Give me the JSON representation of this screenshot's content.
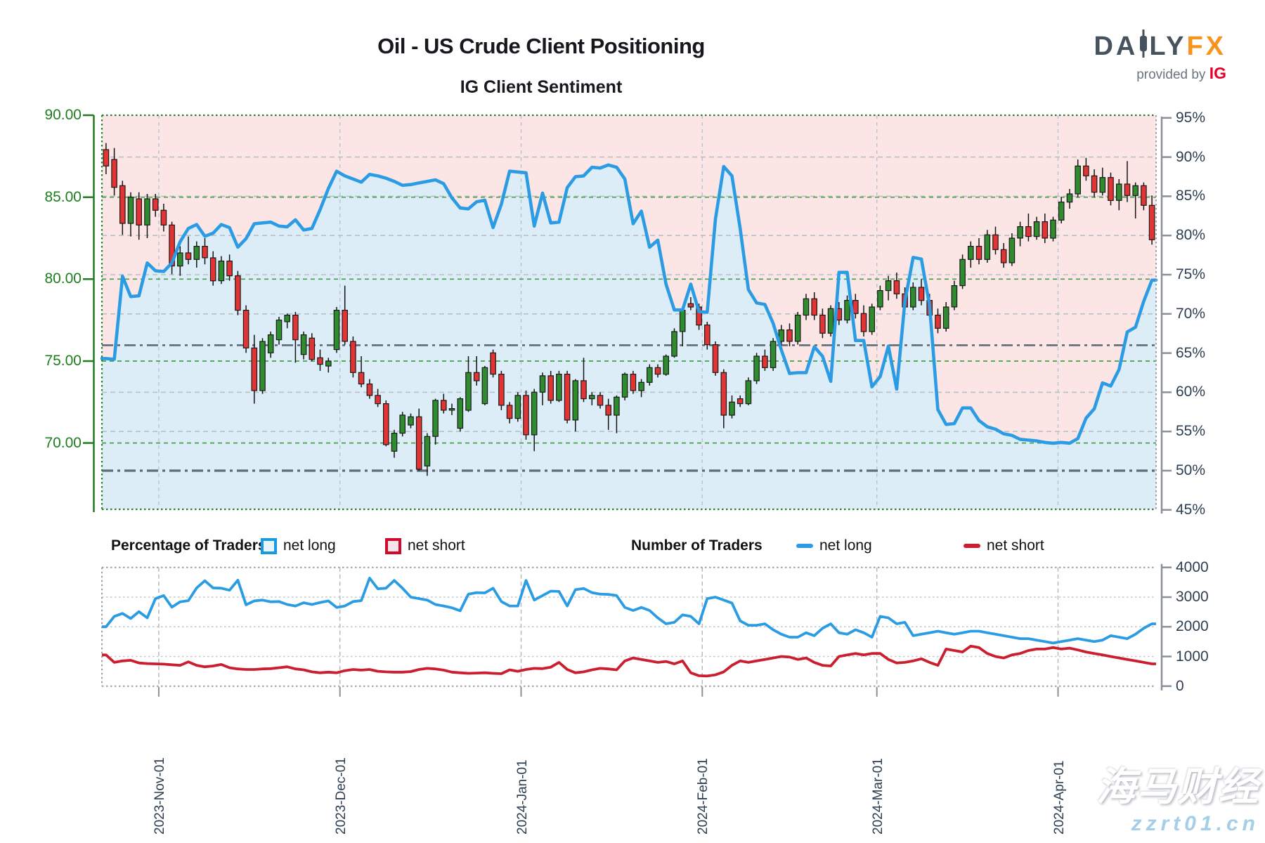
{
  "header": {
    "title": "Oil - US Crude Client Positioning",
    "chart_title": "IG Client Sentiment",
    "logo": {
      "part1": "DA",
      "part2": "LY",
      "part3": "FX",
      "tagline": "provided by",
      "brand": "IG"
    }
  },
  "legend": {
    "group1_title": "Percentage of Traders",
    "group1_long": "net long",
    "group1_short": "net short",
    "group2_title": "Number of Traders",
    "group2_long": "net long",
    "group2_short": "net short"
  },
  "watermark": {
    "line1": "海马财经",
    "line2": "zzrt01.cn"
  },
  "colors": {
    "sentiment_line": "#2b9ce3",
    "net_long_fill": "#dcedf8",
    "net_short_fill": "#fbe5e5",
    "candle_up": "#2e8b2e",
    "candle_down": "#e23434",
    "candle_outline": "#1b1b1b",
    "traders_long": "#2b9ce3",
    "traders_short": "#cb1f30",
    "price_axis": "#1e7d1e",
    "pct_axis_text": "#2c3e50",
    "grid_gray": "#b9bfc4",
    "grid_green": "#43a047",
    "grid_month": "#b8c6d1",
    "threshold": "#5f6b76",
    "spine": "#8a9097"
  },
  "chart_data": {
    "type": "candlestick+line",
    "title": "IG Client Sentiment",
    "x_axis": {
      "tick_labels": [
        "2023-Nov-01",
        "2023-Dec-01",
        "2024-Jan-01",
        "2024-Feb-01",
        "2024-Mar-01",
        "2024-Apr-01"
      ],
      "tick_day_index": [
        6.4,
        28.4,
        50.4,
        72.4,
        93.6,
        115.6
      ],
      "total_days": 128
    },
    "price_axis": {
      "side": "left",
      "tick_values": [
        90,
        85,
        80,
        75,
        70
      ],
      "tick_labels": [
        "90.00",
        "85.00",
        "80.00",
        "75.00",
        "70.00"
      ],
      "range": [
        65.9,
        90.0
      ]
    },
    "sentiment_axis": {
      "side": "right",
      "tick_labels": [
        "95%",
        "90%",
        "85%",
        "80%",
        "75%",
        "70%",
        "65%",
        "60%",
        "55%",
        "50%",
        "45%"
      ],
      "tick_values": [
        95,
        90,
        85,
        80,
        75,
        70,
        65,
        60,
        55,
        50,
        45
      ],
      "range": [
        45,
        95.4
      ]
    },
    "threshold_lines_pct": [
      66,
      50
    ],
    "gray_grid_pct": [
      90,
      85,
      80,
      75,
      70,
      60,
      55
    ],
    "green_grid_price": [
      85,
      80,
      75,
      70
    ],
    "net_long_pct": [
      64.3,
      64.2,
      74.8,
      72.2,
      72.3,
      76.5,
      75.5,
      75.4,
      76.5,
      79.2,
      80.9,
      81.4,
      79.9,
      80.3,
      81.4,
      81.0,
      78.5,
      79.6,
      81.5,
      81.6,
      81.7,
      81.2,
      81.1,
      82.0,
      80.7,
      80.9,
      83.3,
      86.0,
      88.2,
      87.6,
      87.2,
      86.8,
      87.8,
      87.6,
      87.3,
      86.9,
      86.4,
      86.5,
      86.7,
      86.9,
      87.1,
      86.6,
      84.8,
      83.5,
      83.4,
      84.3,
      84.5,
      81.0,
      84.0,
      88.2,
      88.1,
      88.0,
      81.2,
      85.4,
      81.6,
      81.7,
      86.1,
      87.5,
      87.6,
      88.7,
      88.6,
      89.0,
      88.7,
      87.2,
      81.5,
      83.1,
      78.5,
      79.4,
      73.8,
      70.5,
      70.5,
      73.8,
      70.3,
      70.2,
      82.1,
      88.8,
      87.6,
      80.9,
      73.1,
      71.4,
      71.2,
      68.8,
      65.4,
      62.4,
      62.5,
      62.5,
      65.8,
      64.6,
      61.4,
      75.3,
      75.3,
      66.6,
      66.6,
      60.7,
      62.0,
      65.9,
      60.4,
      71.6,
      77.2,
      77.0,
      71.1,
      57.8,
      55.9,
      56.0,
      58.0,
      58.0,
      56.4,
      55.6,
      55.3,
      54.7,
      54.5,
      54.0,
      53.9,
      53.8,
      53.6,
      53.5,
      53.6,
      53.5,
      54.1,
      56.7,
      57.9,
      61.2,
      60.8,
      62.9,
      67.7,
      68.3,
      71.6,
      74.3
    ],
    "candles_ohlc": [
      [
        87.9,
        88.3,
        86.4,
        86.9
      ],
      [
        87.3,
        88.0,
        85.1,
        85.6
      ],
      [
        85.7,
        86.0,
        82.7,
        83.4
      ],
      [
        83.4,
        85.3,
        82.6,
        85.0
      ],
      [
        84.9,
        85.3,
        82.4,
        83.3
      ],
      [
        83.3,
        85.2,
        82.5,
        84.9
      ],
      [
        84.9,
        85.2,
        83.8,
        84.2
      ],
      [
        84.2,
        84.6,
        82.9,
        83.3
      ],
      [
        83.3,
        83.5,
        80.3,
        80.8
      ],
      [
        80.8,
        82.0,
        80.2,
        81.6
      ],
      [
        81.6,
        82.6,
        80.9,
        81.2
      ],
      [
        81.2,
        82.3,
        80.7,
        82.0
      ],
      [
        82.0,
        82.5,
        80.9,
        81.3
      ],
      [
        81.3,
        81.7,
        79.6,
        79.9
      ],
      [
        79.9,
        81.4,
        79.7,
        81.1
      ],
      [
        81.1,
        81.5,
        79.9,
        80.2
      ],
      [
        80.2,
        80.5,
        77.8,
        78.1
      ],
      [
        78.1,
        78.4,
        75.5,
        75.8
      ],
      [
        75.8,
        76.6,
        72.4,
        73.2
      ],
      [
        73.2,
        76.4,
        73.0,
        76.2
      ],
      [
        75.5,
        76.8,
        75.2,
        76.6
      ],
      [
        76.3,
        77.7,
        76.0,
        77.5
      ],
      [
        77.4,
        77.9,
        77.0,
        77.8
      ],
      [
        77.8,
        78.0,
        74.9,
        76.3
      ],
      [
        75.4,
        76.8,
        75.1,
        76.6
      ],
      [
        76.4,
        76.7,
        75.0,
        75.1
      ],
      [
        75.2,
        75.7,
        74.4,
        74.8
      ],
      [
        74.7,
        75.2,
        74.3,
        75.0
      ],
      [
        75.7,
        78.3,
        75.5,
        78.1
      ],
      [
        78.1,
        79.6,
        76.0,
        76.2
      ],
      [
        76.2,
        76.5,
        74.0,
        74.3
      ],
      [
        74.3,
        75.3,
        73.4,
        73.6
      ],
      [
        73.6,
        73.9,
        72.7,
        72.9
      ],
      [
        72.9,
        73.3,
        72.2,
        72.4
      ],
      [
        72.4,
        72.6,
        69.8,
        69.9
      ],
      [
        69.5,
        70.8,
        69.1,
        70.6
      ],
      [
        70.6,
        71.9,
        70.4,
        71.7
      ],
      [
        71.1,
        71.8,
        70.9,
        71.6
      ],
      [
        71.6,
        72.1,
        68.3,
        68.4
      ],
      [
        68.6,
        70.6,
        68.0,
        70.4
      ],
      [
        70.4,
        72.7,
        69.9,
        72.6
      ],
      [
        72.6,
        73.0,
        71.8,
        72.0
      ],
      [
        72.0,
        72.4,
        71.7,
        72.1
      ],
      [
        70.9,
        72.8,
        70.7,
        72.7
      ],
      [
        72.0,
        75.3,
        71.9,
        74.3
      ],
      [
        74.3,
        75.3,
        73.5,
        73.8
      ],
      [
        72.4,
        74.7,
        72.3,
        74.6
      ],
      [
        75.5,
        75.7,
        74.0,
        74.2
      ],
      [
        74.2,
        74.4,
        72.0,
        72.3
      ],
      [
        72.3,
        72.5,
        71.2,
        71.5
      ],
      [
        71.5,
        73.1,
        71.3,
        72.9
      ],
      [
        72.9,
        73.2,
        70.2,
        70.5
      ],
      [
        70.5,
        73.3,
        69.5,
        73.1
      ],
      [
        73.1,
        74.3,
        72.3,
        74.1
      ],
      [
        74.1,
        74.4,
        72.4,
        72.6
      ],
      [
        72.6,
        74.4,
        72.5,
        74.2
      ],
      [
        74.2,
        74.4,
        71.2,
        71.4
      ],
      [
        71.4,
        73.9,
        70.7,
        73.8
      ],
      [
        73.8,
        75.2,
        72.5,
        72.7
      ],
      [
        72.7,
        73.1,
        72.3,
        72.9
      ],
      [
        72.9,
        73.1,
        72.1,
        72.3
      ],
      [
        72.3,
        72.7,
        70.8,
        71.7
      ],
      [
        71.7,
        72.9,
        70.6,
        72.8
      ],
      [
        72.8,
        74.3,
        72.6,
        74.2
      ],
      [
        74.2,
        74.4,
        73.0,
        73.2
      ],
      [
        73.2,
        73.9,
        72.8,
        73.7
      ],
      [
        73.7,
        74.8,
        73.5,
        74.6
      ],
      [
        74.6,
        74.8,
        74.0,
        74.2
      ],
      [
        74.2,
        75.4,
        74.1,
        75.3
      ],
      [
        75.3,
        77.0,
        75.2,
        76.8
      ],
      [
        76.8,
        78.3,
        75.9,
        78.1
      ],
      [
        78.5,
        78.9,
        78.1,
        78.3
      ],
      [
        78.3,
        78.5,
        76.9,
        77.2
      ],
      [
        77.2,
        77.4,
        75.7,
        76.0
      ],
      [
        76.0,
        76.2,
        74.1,
        74.3
      ],
      [
        74.3,
        74.5,
        70.9,
        71.7
      ],
      [
        71.7,
        72.9,
        71.5,
        72.5
      ],
      [
        72.7,
        72.9,
        72.2,
        72.4
      ],
      [
        72.4,
        74.0,
        72.3,
        73.8
      ],
      [
        73.8,
        75.5,
        73.6,
        75.3
      ],
      [
        75.3,
        75.7,
        74.4,
        74.6
      ],
      [
        74.6,
        76.4,
        74.4,
        76.2
      ],
      [
        76.2,
        77.2,
        75.7,
        76.9
      ],
      [
        76.9,
        77.3,
        75.9,
        76.2
      ],
      [
        76.2,
        78.0,
        76.0,
        77.8
      ],
      [
        77.8,
        79.1,
        77.5,
        78.8
      ],
      [
        78.8,
        79.2,
        77.5,
        77.8
      ],
      [
        77.8,
        78.2,
        76.4,
        76.7
      ],
      [
        76.7,
        78.4,
        76.5,
        78.2
      ],
      [
        78.2,
        78.6,
        77.2,
        77.5
      ],
      [
        77.5,
        79.0,
        77.3,
        78.7
      ],
      [
        78.7,
        79.1,
        77.6,
        77.9
      ],
      [
        77.9,
        78.4,
        76.5,
        76.8
      ],
      [
        76.8,
        78.5,
        76.6,
        78.3
      ],
      [
        78.3,
        79.6,
        78.1,
        79.3
      ],
      [
        79.3,
        80.2,
        78.7,
        79.9
      ],
      [
        79.9,
        80.4,
        78.8,
        79.1
      ],
      [
        79.1,
        79.5,
        78.0,
        78.3
      ],
      [
        78.3,
        79.8,
        78.1,
        79.5
      ],
      [
        79.5,
        80.0,
        78.4,
        78.7
      ],
      [
        78.7,
        79.1,
        77.5,
        77.8
      ],
      [
        77.8,
        78.2,
        76.7,
        77.0
      ],
      [
        77.0,
        78.6,
        76.8,
        78.3
      ],
      [
        78.3,
        79.9,
        78.1,
        79.6
      ],
      [
        79.6,
        81.5,
        79.4,
        81.2
      ],
      [
        81.2,
        82.3,
        80.7,
        82.0
      ],
      [
        82.0,
        82.5,
        80.9,
        81.2
      ],
      [
        81.2,
        83.0,
        81.0,
        82.7
      ],
      [
        82.7,
        83.2,
        81.5,
        81.8
      ],
      [
        81.8,
        82.2,
        80.7,
        81.0
      ],
      [
        81.0,
        82.8,
        80.8,
        82.5
      ],
      [
        82.5,
        83.5,
        82.0,
        83.2
      ],
      [
        83.2,
        84.0,
        82.3,
        82.6
      ],
      [
        82.6,
        83.8,
        82.4,
        83.5
      ],
      [
        83.5,
        84.0,
        82.2,
        82.5
      ],
      [
        82.5,
        83.8,
        82.3,
        83.6
      ],
      [
        83.6,
        85.0,
        83.4,
        84.7
      ],
      [
        84.7,
        85.5,
        84.3,
        85.2
      ],
      [
        85.2,
        87.3,
        85.0,
        86.9
      ],
      [
        86.9,
        87.4,
        86.0,
        86.3
      ],
      [
        86.3,
        86.7,
        85.0,
        85.3
      ],
      [
        85.3,
        86.8,
        85.1,
        86.2
      ],
      [
        86.2,
        86.5,
        84.5,
        84.8
      ],
      [
        84.8,
        86.1,
        84.2,
        85.8
      ],
      [
        85.8,
        87.2,
        84.7,
        85.1
      ],
      [
        85.1,
        85.9,
        83.7,
        85.7
      ],
      [
        85.7,
        85.9,
        84.2,
        84.5
      ],
      [
        84.5,
        85.1,
        82.1,
        82.4
      ]
    ],
    "traders_chart": {
      "type": "line",
      "y_axis": {
        "side": "right",
        "tick_labels": [
          "4000",
          "3000",
          "2000",
          "1000",
          "0"
        ],
        "tick_values": [
          4000,
          3000,
          2000,
          1000,
          0
        ],
        "range": [
          0,
          4000
        ]
      },
      "net_long": [
        2000,
        2350,
        2450,
        2280,
        2510,
        2300,
        2950,
        3050,
        2660,
        2840,
        2880,
        3310,
        3550,
        3310,
        3300,
        3230,
        3570,
        2740,
        2870,
        2900,
        2840,
        2850,
        2750,
        2700,
        2810,
        2750,
        2820,
        2870,
        2650,
        2700,
        2850,
        2880,
        3640,
        3280,
        3300,
        3560,
        3300,
        3000,
        2950,
        2900,
        2750,
        2700,
        2640,
        2540,
        3100,
        3150,
        3140,
        3300,
        2850,
        2700,
        2700,
        3560,
        2900,
        3050,
        3200,
        3190,
        2700,
        3250,
        3290,
        3150,
        3100,
        3090,
        3050,
        2650,
        2550,
        2650,
        2550,
        2300,
        2100,
        2150,
        2400,
        2350,
        2100,
        2950,
        3000,
        2900,
        2800,
        2200,
        2050,
        2050,
        2100,
        1900,
        1750,
        1650,
        1650,
        1800,
        1700,
        1950,
        2100,
        1800,
        1750,
        1900,
        1800,
        1650,
        2350,
        2300,
        2100,
        2150,
        1700,
        1750,
        1800,
        1850,
        1800,
        1750,
        1800,
        1850,
        1850,
        1800,
        1750,
        1700,
        1650,
        1600,
        1600,
        1550,
        1500,
        1450,
        1500,
        1550,
        1600,
        1550,
        1500,
        1550,
        1700,
        1650,
        1600,
        1750,
        1950,
        2100
      ],
      "net_short": [
        1050,
        800,
        850,
        870,
        780,
        760,
        750,
        740,
        720,
        700,
        820,
        700,
        650,
        680,
        730,
        620,
        580,
        560,
        560,
        580,
        590,
        620,
        650,
        580,
        550,
        480,
        450,
        470,
        450,
        520,
        560,
        540,
        560,
        500,
        480,
        470,
        470,
        490,
        560,
        600,
        580,
        540,
        470,
        450,
        430,
        440,
        450,
        430,
        420,
        550,
        500,
        560,
        600,
        590,
        640,
        800,
        560,
        450,
        480,
        550,
        600,
        580,
        550,
        850,
        950,
        900,
        850,
        800,
        830,
        750,
        850,
        450,
        350,
        340,
        380,
        480,
        700,
        850,
        800,
        850,
        900,
        950,
        1000,
        980,
        900,
        950,
        800,
        700,
        680,
        1000,
        1050,
        1100,
        1050,
        1100,
        1100,
        900,
        780,
        800,
        850,
        920,
        800,
        700,
        1250,
        1200,
        1150,
        1350,
        1300,
        1100,
        1000,
        950,
        1050,
        1100,
        1200,
        1250,
        1250,
        1300,
        1250,
        1280,
        1220,
        1150,
        1100,
        1050,
        1000,
        950,
        900,
        850,
        800,
        750
      ]
    }
  }
}
